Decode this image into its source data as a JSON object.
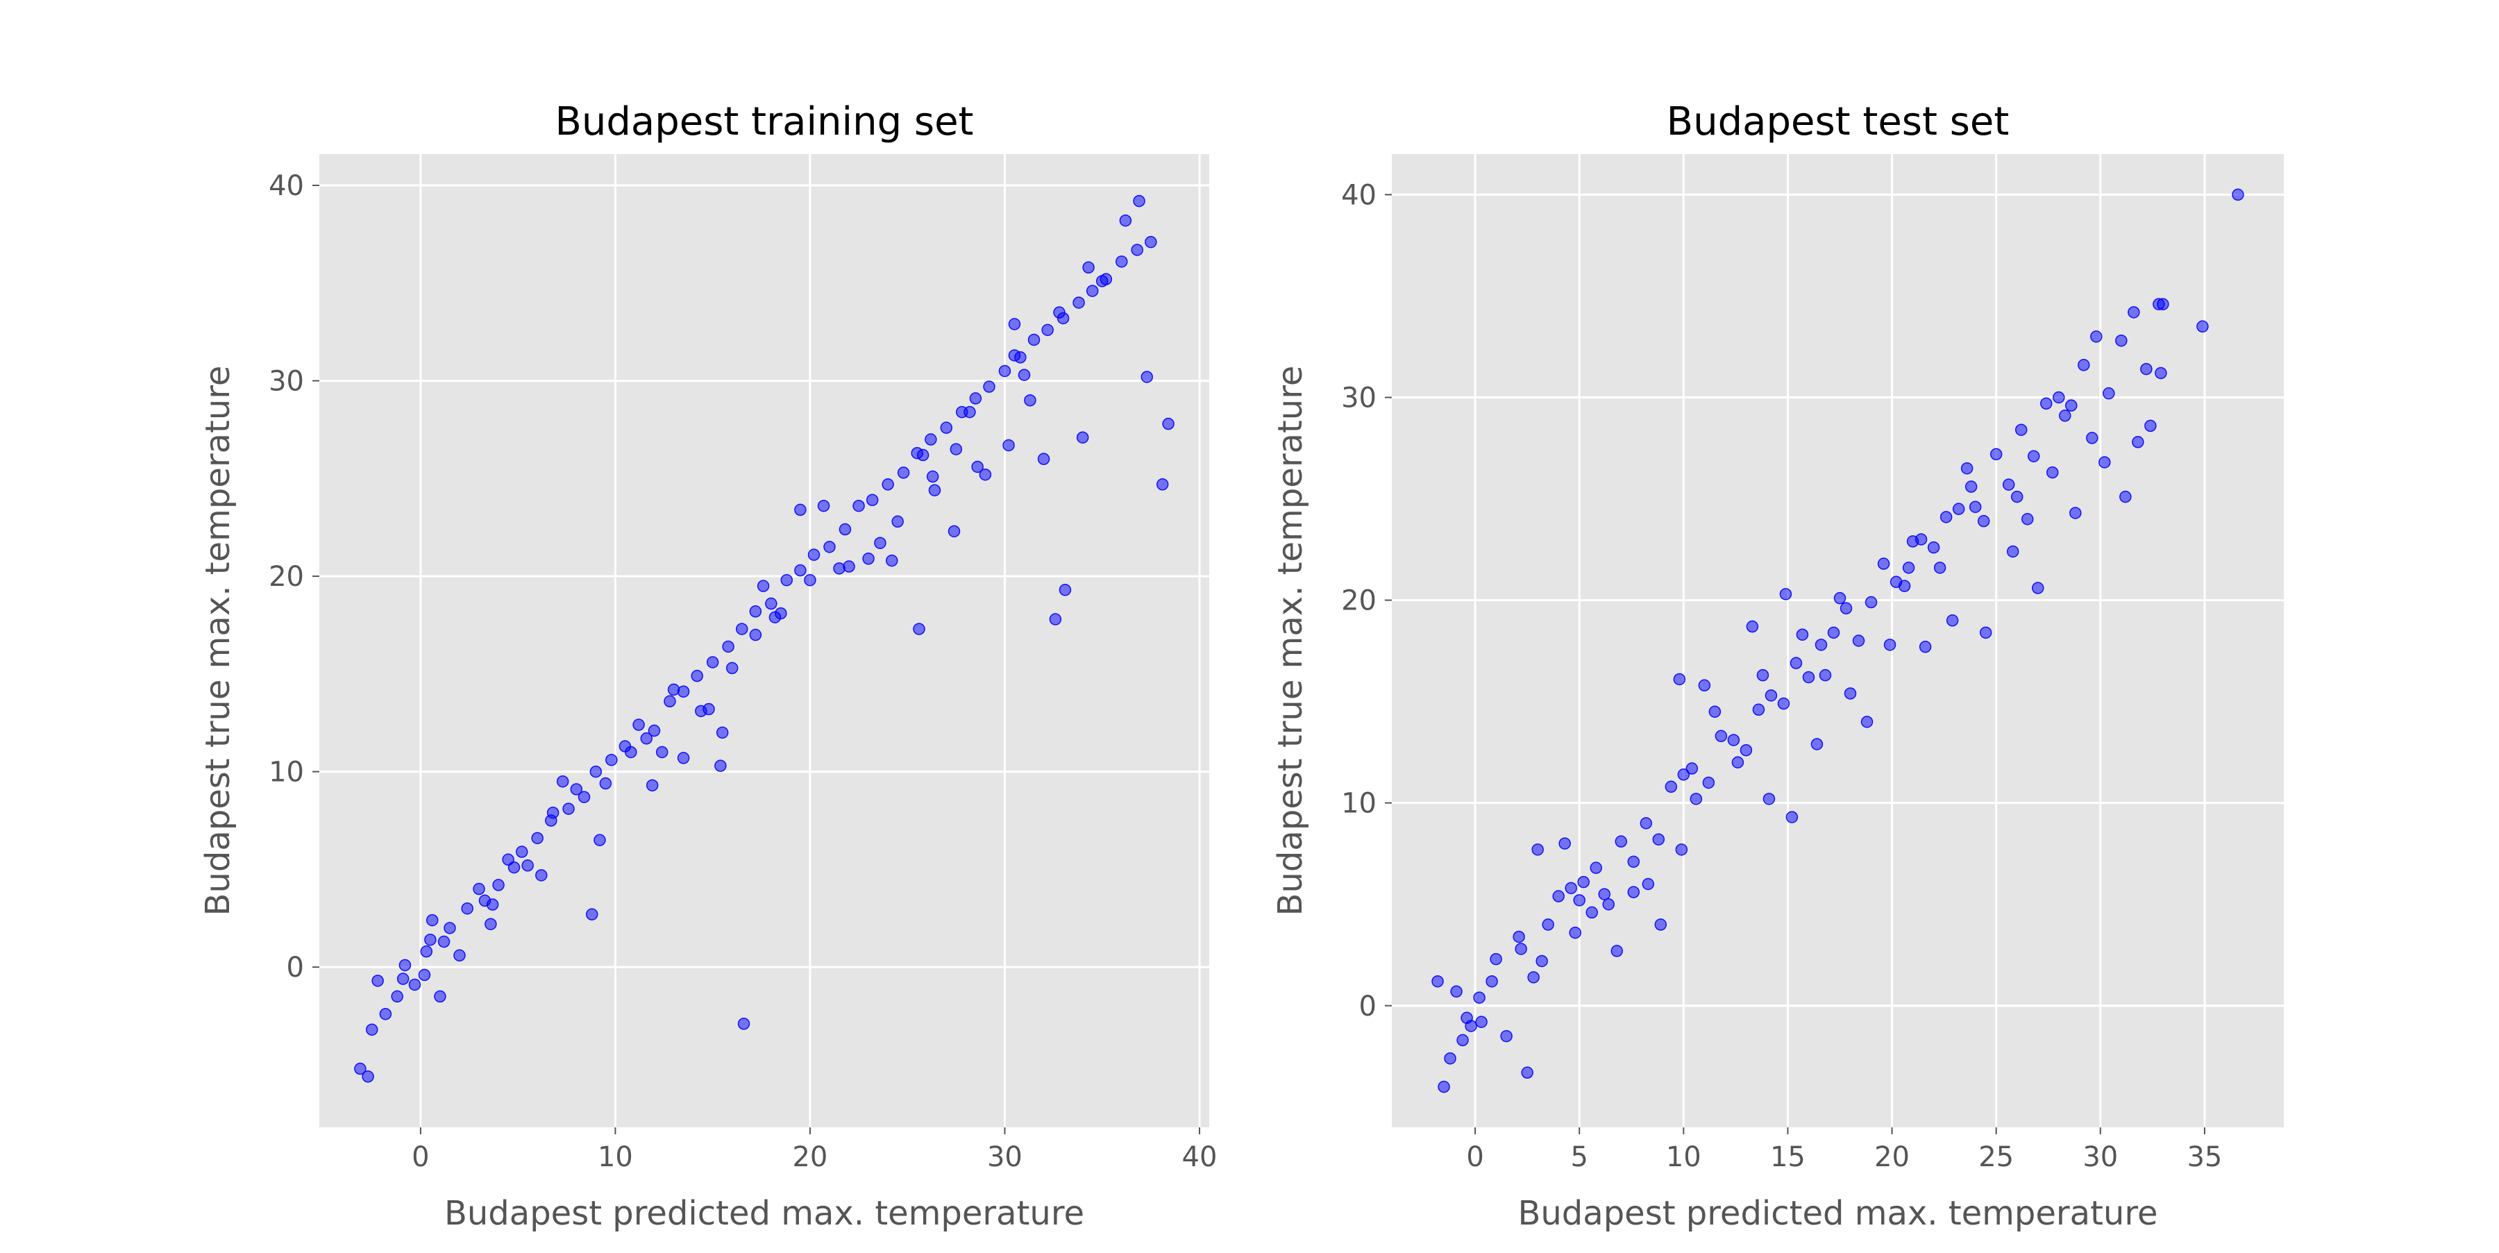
{
  "chart_data": [
    {
      "type": "scatter",
      "title": "Budapest training set",
      "xlabel": "Budapest predicted max. temperature",
      "ylabel": "Budapest true max. temperature",
      "xlim": [
        -5.2,
        40.5
      ],
      "ylim": [
        -8.2,
        41.6
      ],
      "xticks": [
        0,
        10,
        20,
        30,
        40
      ],
      "yticks": [
        0,
        10,
        20,
        30,
        40
      ],
      "grid": true,
      "marker_color": "#0000ff",
      "background": "#e5e5e5",
      "points_x": [
        -3.1,
        -2.5,
        -2.7,
        -1.2,
        -1.8,
        -0.9,
        -0.3,
        0.3,
        0.6,
        1.2,
        2.4,
        3.3,
        4.0,
        4.5,
        5.2,
        6.0,
        6.8,
        7.6,
        8.4,
        9.0,
        9.8,
        10.5,
        11.2,
        12.0,
        12.8,
        13.5,
        14.2,
        15.0,
        15.8,
        16.5,
        17.2,
        18.0,
        18.8,
        19.5,
        20.2,
        21.0,
        21.8,
        22.5,
        23.2,
        24.0,
        24.8,
        25.5,
        26.2,
        27.0,
        27.8,
        28.5,
        29.2,
        30.0,
        30.8,
        31.5,
        32.2,
        33.0,
        33.8,
        34.5,
        35.2,
        36.0,
        36.8,
        0.2,
        1.5,
        3.0,
        5.5,
        8.0,
        10.8,
        13.0,
        16.0,
        18.5,
        21.5,
        24.5,
        27.5,
        30.5,
        32.8,
        35.0,
        37.5,
        36.2,
        33.1,
        32.6,
        38.4,
        38.1,
        37.3,
        16.6,
        8.8,
        11.9,
        13.5,
        14.4,
        15.5,
        15.4,
        17.2,
        23.6,
        25.6,
        27.4,
        29.0,
        31.3,
        32.0,
        34.0,
        6.7,
        9.5,
        19.5,
        22.0,
        24.2,
        26.4,
        2.0,
        4.8,
        7.3,
        12.4,
        18.2,
        20.7,
        28.6,
        0.5,
        -0.8,
        -2.2,
        1.0,
        3.6,
        6.2,
        9.2,
        11.6,
        14.8,
        17.6,
        20.0,
        23.0,
        25.8,
        28.2,
        31.0,
        34.3,
        26.3,
        3.7,
        30.2,
        30.5,
        36.9
      ],
      "points_y": [
        -5.2,
        -3.2,
        -5.6,
        -1.5,
        -2.4,
        -0.6,
        -0.9,
        0.8,
        2.4,
        1.3,
        3.0,
        3.4,
        4.2,
        5.5,
        5.9,
        6.6,
        7.9,
        8.1,
        8.7,
        10.0,
        10.6,
        11.3,
        12.4,
        12.1,
        13.6,
        14.1,
        14.9,
        15.6,
        16.4,
        17.3,
        18.2,
        18.6,
        19.8,
        20.3,
        21.1,
        21.5,
        22.4,
        23.6,
        23.9,
        24.7,
        25.3,
        26.3,
        27.0,
        27.6,
        28.4,
        29.1,
        29.7,
        30.5,
        31.2,
        32.1,
        32.6,
        33.2,
        34.0,
        34.6,
        35.2,
        36.1,
        36.7,
        -0.4,
        2.0,
        4.0,
        5.2,
        9.1,
        11.0,
        14.2,
        15.3,
        18.1,
        20.4,
        22.8,
        26.5,
        31.3,
        33.5,
        35.1,
        37.1,
        38.2,
        19.3,
        17.8,
        27.8,
        24.7,
        30.2,
        -2.9,
        2.7,
        9.3,
        10.7,
        13.1,
        12.0,
        10.3,
        17.0,
        21.7,
        17.3,
        22.3,
        25.2,
        29.0,
        26.0,
        27.1,
        7.5,
        9.4,
        23.4,
        20.5,
        20.8,
        24.4,
        0.6,
        5.1,
        9.5,
        11.0,
        17.9,
        23.6,
        25.6,
        1.4,
        0.1,
        -0.7,
        -1.5,
        2.2,
        4.7,
        6.5,
        11.7,
        13.2,
        19.5,
        19.8,
        20.9,
        26.2,
        28.4,
        30.3,
        35.8,
        25.1,
        3.2,
        26.7,
        32.9,
        39.2
      ]
    },
    {
      "type": "scatter",
      "title": "Budapest test set",
      "xlabel": "Budapest predicted max. temperature",
      "ylabel": "Budapest true max. temperature",
      "xlim": [
        -4.0,
        38.8
      ],
      "ylim": [
        -6.0,
        42.0
      ],
      "xticks": [
        0,
        5,
        10,
        15,
        20,
        25,
        30,
        35
      ],
      "yticks": [
        0,
        10,
        20,
        30,
        40
      ],
      "grid": true,
      "marker_color": "#0000ff",
      "background": "#e5e5e5",
      "points_x": [
        -1.5,
        -1.2,
        -0.6,
        -0.4,
        0.2,
        0.8,
        1.5,
        2.2,
        2.8,
        3.5,
        4.0,
        4.6,
        5.2,
        5.8,
        6.4,
        7.0,
        7.6,
        8.2,
        8.8,
        9.4,
        10.0,
        10.6,
        11.2,
        11.8,
        12.4,
        13.0,
        13.6,
        14.2,
        14.8,
        15.4,
        16.0,
        16.6,
        17.2,
        17.8,
        18.4,
        19.0,
        19.6,
        20.2,
        20.8,
        21.4,
        22.0,
        22.6,
        23.2,
        23.8,
        24.4,
        25.0,
        25.6,
        26.2,
        26.8,
        27.4,
        28.0,
        28.6,
        29.2,
        29.8,
        30.4,
        31.0,
        31.6,
        32.2,
        32.8,
        36.6,
        34.9,
        32.9,
        32.4,
        31.2,
        27.0,
        24.5,
        21.6,
        18.8,
        16.4,
        15.2,
        14.9,
        13.3,
        11.0,
        9.8,
        8.3,
        6.2,
        5.0,
        4.3,
        3.0,
        2.1,
        1.0,
        0.3,
        -0.2,
        -1.8,
        12.6,
        16.8,
        19.9,
        22.9,
        25.8,
        28.8,
        30.2,
        31.8,
        6.8,
        8.9,
        10.4,
        4.8,
        7.6,
        17.5,
        20.6,
        23.6,
        26.5,
        29.6,
        2.5,
        9.9,
        14.1,
        18.0,
        24.0,
        27.7,
        -0.9,
        3.2,
        5.6,
        11.5,
        13.8,
        15.7,
        21.0,
        22.3,
        26.0,
        28.3,
        33.0
      ],
      "points_y": [
        -4.0,
        -2.6,
        -1.7,
        -0.6,
        0.4,
        1.2,
        -1.5,
        2.8,
        1.4,
        4.0,
        5.4,
        5.8,
        6.1,
        6.8,
        5.0,
        8.1,
        7.1,
        9.0,
        8.2,
        10.8,
        11.4,
        10.2,
        11.0,
        13.3,
        13.1,
        12.6,
        14.6,
        15.3,
        14.9,
        16.9,
        16.2,
        17.8,
        18.4,
        19.6,
        18.0,
        19.9,
        21.8,
        20.9,
        21.6,
        23.0,
        22.6,
        24.1,
        24.5,
        25.6,
        23.9,
        27.2,
        25.7,
        28.4,
        27.1,
        29.7,
        30.0,
        29.6,
        31.6,
        33.0,
        30.2,
        32.8,
        34.2,
        31.4,
        34.6,
        40.0,
        33.5,
        31.2,
        28.6,
        25.1,
        20.6,
        18.4,
        17.7,
        14.0,
        12.9,
        9.3,
        20.3,
        18.7,
        15.8,
        16.1,
        6.0,
        5.5,
        5.2,
        8.0,
        7.7,
        3.4,
        2.3,
        -0.8,
        -1.0,
        1.2,
        12.0,
        16.3,
        17.8,
        19.0,
        22.4,
        24.3,
        26.8,
        27.8,
        2.7,
        4.0,
        11.7,
        3.6,
        5.6,
        20.1,
        20.7,
        26.5,
        24.0,
        28.0,
        -3.3,
        7.7,
        10.2,
        15.4,
        24.6,
        26.3,
        0.7,
        2.2,
        4.6,
        14.5,
        16.3,
        18.3,
        22.9,
        21.6,
        25.1,
        29.1,
        34.6
      ]
    }
  ]
}
